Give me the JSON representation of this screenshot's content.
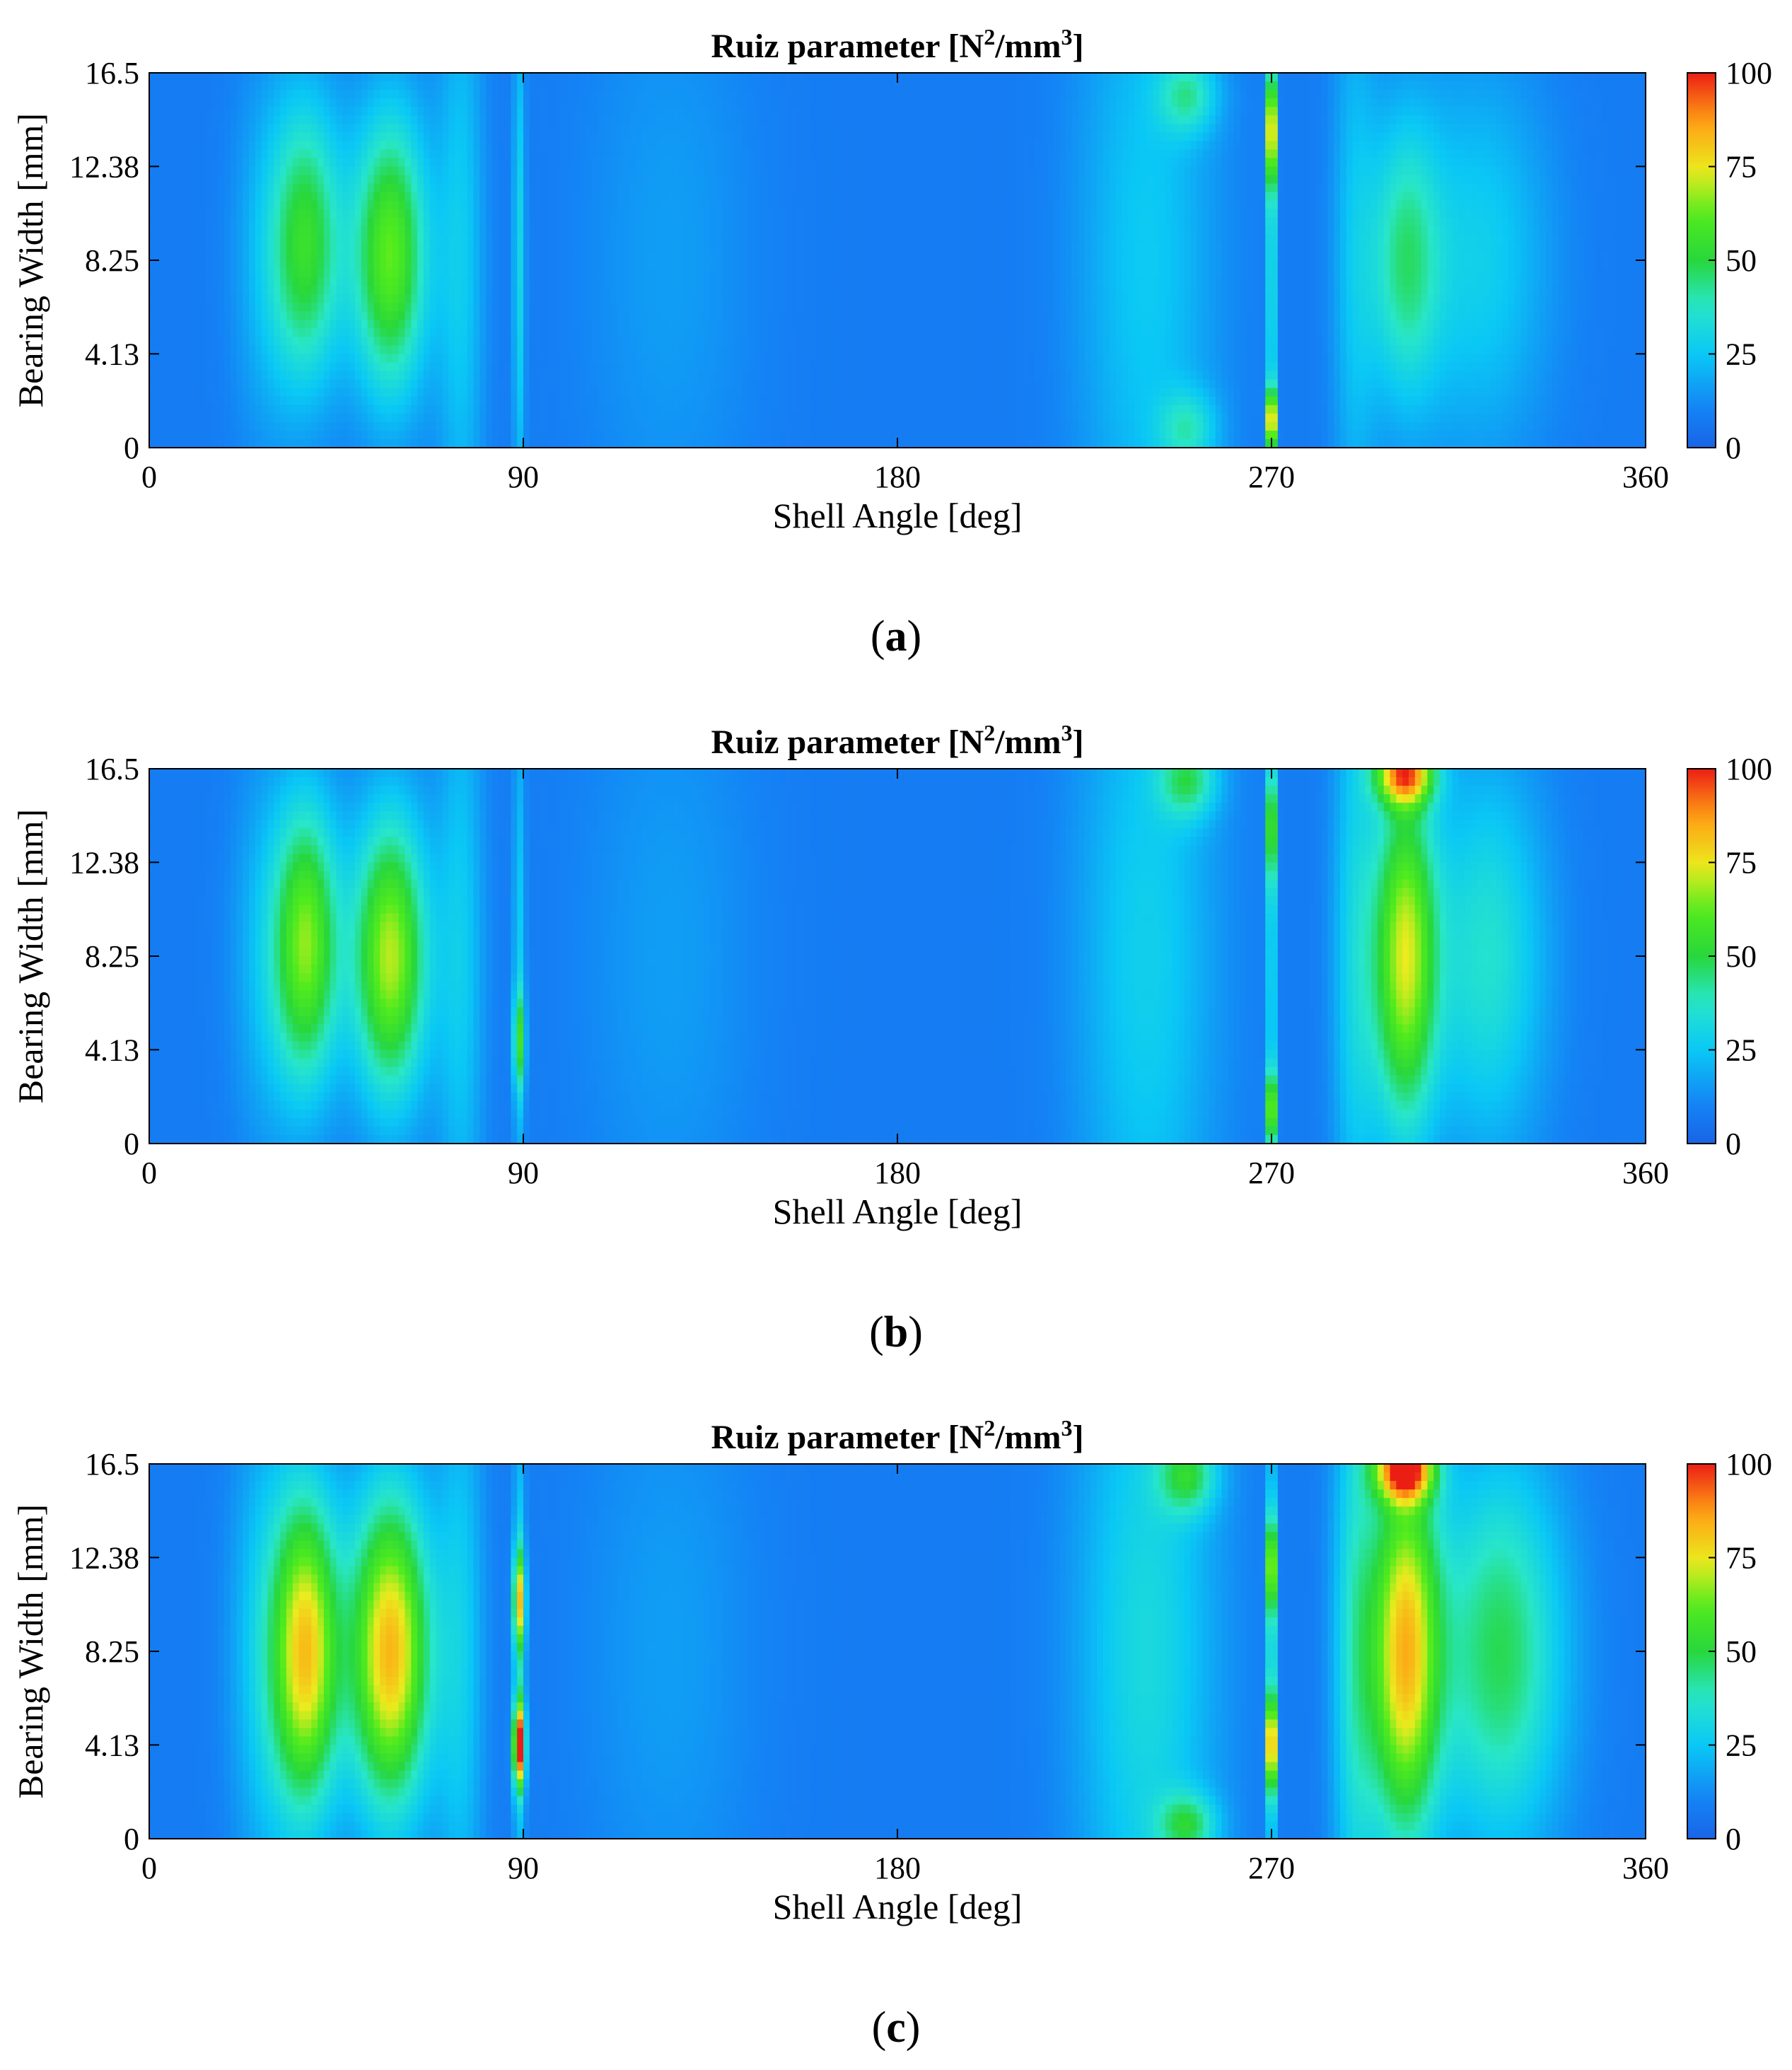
{
  "chart_data": [
    {
      "type": "heatmap",
      "panel_label": "(a)",
      "title_main": "Ruiz parameter [N",
      "title_sup1": "2",
      "title_mid": "/mm",
      "title_sup2": "3",
      "title_end": "]",
      "xlabel": "Shell Angle [deg]",
      "ylabel": "Bearing Width [mm]",
      "xlim": [
        0,
        360
      ],
      "ylim": [
        0,
        16.5
      ],
      "xticks": [
        0,
        90,
        180,
        270,
        360
      ],
      "xtick_labels": [
        "0",
        "90",
        "180",
        "270",
        "360"
      ],
      "yticks": [
        0,
        4.13,
        8.25,
        12.38,
        16.5
      ],
      "ytick_labels": [
        "0",
        "4.13",
        "8.25",
        "12.38",
        "16.5"
      ],
      "colorbar": {
        "min": 0,
        "max": 100,
        "ticks": [
          0,
          25,
          50,
          75,
          100
        ],
        "tick_labels": [
          "0",
          "25",
          "50",
          "75",
          "100"
        ]
      },
      "baseline_value": 8,
      "hotspots": [
        {
          "angle": 28,
          "width_mm": 8.25,
          "angle_spread": 6,
          "width_spread": 6,
          "value": 12
        },
        {
          "angle": 38,
          "width_mm": 9.0,
          "angle_spread": 6,
          "width_spread": 4.5,
          "value": 44
        },
        {
          "angle": 58,
          "width_mm": 8.5,
          "angle_spread": 6.5,
          "width_spread": 4.5,
          "value": 55
        },
        {
          "angle": 75,
          "width_mm": 8.25,
          "angle_spread": 4,
          "width_spread": 10,
          "value": 18
        },
        {
          "angle": 89,
          "width_mm": 8.25,
          "angle_spread": 1,
          "width_spread": 8,
          "value": 22
        },
        {
          "angle": 125,
          "width_mm": 8.25,
          "angle_spread": 15,
          "width_spread": 10,
          "value": 8
        },
        {
          "angle": 240,
          "width_mm": 8.25,
          "angle_spread": 12,
          "width_spread": 12,
          "value": 18
        },
        {
          "angle": 250,
          "width_mm": 15.5,
          "angle_spread": 5,
          "width_spread": 1.2,
          "value": 25
        },
        {
          "angle": 250,
          "width_mm": 0.8,
          "angle_spread": 5,
          "width_spread": 1.2,
          "value": 22
        },
        {
          "angle": 270,
          "width_mm": 14.0,
          "angle_spread": 0.7,
          "width_spread": 1.8,
          "value": 85
        },
        {
          "angle": 270,
          "width_mm": 1.2,
          "angle_spread": 0.7,
          "width_spread": 1.0,
          "value": 90
        },
        {
          "angle": 270,
          "width_mm": 8.25,
          "angle_spread": 0.7,
          "width_spread": 8,
          "value": 35
        },
        {
          "angle": 290,
          "width_mm": 8.25,
          "angle_spread": 4,
          "width_spread": 10,
          "value": 15
        },
        {
          "angle": 302,
          "width_mm": 8.25,
          "angle_spread": 6,
          "width_spread": 4.5,
          "value": 32
        },
        {
          "angle": 320,
          "width_mm": 8.25,
          "angle_spread": 12,
          "width_spread": 6,
          "value": 20
        }
      ]
    },
    {
      "type": "heatmap",
      "panel_label": "(b)",
      "title_main": "Ruiz parameter [N",
      "title_sup1": "2",
      "title_mid": "/mm",
      "title_sup2": "3",
      "title_end": "]",
      "xlabel": "Shell Angle [deg]",
      "ylabel": "Bearing Width [mm]",
      "xlim": [
        0,
        360
      ],
      "ylim": [
        0,
        16.5
      ],
      "xticks": [
        0,
        90,
        180,
        270,
        360
      ],
      "xtick_labels": [
        "0",
        "90",
        "180",
        "270",
        "360"
      ],
      "yticks": [
        0,
        4.13,
        8.25,
        12.38,
        16.5
      ],
      "ytick_labels": [
        "0",
        "4.13",
        "8.25",
        "12.38",
        "16.5"
      ],
      "colorbar": {
        "min": 0,
        "max": 100,
        "ticks": [
          0,
          25,
          50,
          75,
          100
        ],
        "tick_labels": [
          "0",
          "25",
          "50",
          "75",
          "100"
        ]
      },
      "baseline_value": 8,
      "hotspots": [
        {
          "angle": 28,
          "width_mm": 8.25,
          "angle_spread": 6,
          "width_spread": 6,
          "value": 14
        },
        {
          "angle": 38,
          "width_mm": 8.8,
          "angle_spread": 5.5,
          "width_spread": 4.5,
          "value": 55
        },
        {
          "angle": 58,
          "width_mm": 8.25,
          "angle_spread": 6.5,
          "width_spread": 4.5,
          "value": 62
        },
        {
          "angle": 75,
          "width_mm": 8.25,
          "angle_spread": 4,
          "width_spread": 10,
          "value": 18
        },
        {
          "angle": 89,
          "width_mm": 4.5,
          "angle_spread": 1,
          "width_spread": 1.5,
          "value": 35
        },
        {
          "angle": 89,
          "width_mm": 8.25,
          "angle_spread": 1,
          "width_spread": 8,
          "value": 18
        },
        {
          "angle": 125,
          "width_mm": 8.25,
          "angle_spread": 15,
          "width_spread": 10,
          "value": 8
        },
        {
          "angle": 240,
          "width_mm": 8.25,
          "angle_spread": 12,
          "width_spread": 12,
          "value": 20
        },
        {
          "angle": 250,
          "width_mm": 16.0,
          "angle_spread": 5,
          "width_spread": 1.2,
          "value": 30
        },
        {
          "angle": 270,
          "width_mm": 14.0,
          "angle_spread": 0.7,
          "width_spread": 1.8,
          "value": 55
        },
        {
          "angle": 270,
          "width_mm": 1.5,
          "angle_spread": 0.7,
          "width_spread": 1.2,
          "value": 70
        },
        {
          "angle": 270,
          "width_mm": 8.25,
          "angle_spread": 0.7,
          "width_spread": 8,
          "value": 30
        },
        {
          "angle": 290,
          "width_mm": 8.25,
          "angle_spread": 4,
          "width_spread": 10,
          "value": 20
        },
        {
          "angle": 302,
          "width_mm": 8.25,
          "angle_spread": 5.5,
          "width_spread": 5.5,
          "value": 62
        },
        {
          "angle": 302,
          "width_mm": 16.3,
          "angle_spread": 5,
          "width_spread": 1.0,
          "value": 70
        },
        {
          "angle": 322,
          "width_mm": 8.25,
          "angle_spread": 10,
          "width_spread": 6,
          "value": 28
        }
      ]
    },
    {
      "type": "heatmap",
      "panel_label": "(c)",
      "title_main": "Ruiz parameter [N",
      "title_sup1": "2",
      "title_mid": "/mm",
      "title_sup2": "3",
      "title_end": "]",
      "xlabel": "Shell Angle [deg]",
      "ylabel": "Bearing Width [mm]",
      "xlim": [
        0,
        360
      ],
      "ylim": [
        0,
        16.5
      ],
      "xticks": [
        0,
        90,
        180,
        270,
        360
      ],
      "xtick_labels": [
        "0",
        "90",
        "180",
        "270",
        "360"
      ],
      "yticks": [
        0,
        4.13,
        8.25,
        12.38,
        16.5
      ],
      "ytick_labels": [
        "0",
        "4.13",
        "8.25",
        "12.38",
        "16.5"
      ],
      "colorbar": {
        "min": 0,
        "max": 100,
        "ticks": [
          0,
          25,
          50,
          75,
          100
        ],
        "tick_labels": [
          "0",
          "25",
          "50",
          "75",
          "100"
        ]
      },
      "baseline_value": 8,
      "hotspots": [
        {
          "angle": 28,
          "width_mm": 8.25,
          "angle_spread": 6,
          "width_spread": 7,
          "value": 20
        },
        {
          "angle": 38,
          "width_mm": 8.25,
          "angle_spread": 5.5,
          "width_spread": 5,
          "value": 68
        },
        {
          "angle": 58,
          "width_mm": 8.25,
          "angle_spread": 7,
          "width_spread": 5,
          "value": 75
        },
        {
          "angle": 75,
          "width_mm": 8.25,
          "angle_spread": 4,
          "width_spread": 10,
          "value": 18
        },
        {
          "angle": 89,
          "width_mm": 4.13,
          "angle_spread": 1,
          "width_spread": 1.3,
          "value": 85
        },
        {
          "angle": 89,
          "width_mm": 10.5,
          "angle_spread": 1,
          "width_spread": 1.5,
          "value": 55
        },
        {
          "angle": 89,
          "width_mm": 8.25,
          "angle_spread": 1,
          "width_spread": 8,
          "value": 22
        },
        {
          "angle": 125,
          "width_mm": 8.25,
          "angle_spread": 15,
          "width_spread": 10,
          "value": 8
        },
        {
          "angle": 240,
          "width_mm": 8.25,
          "angle_spread": 12,
          "width_spread": 12,
          "value": 24
        },
        {
          "angle": 250,
          "width_mm": 16.0,
          "angle_spread": 5,
          "width_spread": 1.2,
          "value": 32
        },
        {
          "angle": 250,
          "width_mm": 0.6,
          "angle_spread": 5,
          "width_spread": 1.0,
          "value": 30
        },
        {
          "angle": 270,
          "width_mm": 4.13,
          "angle_spread": 0.7,
          "width_spread": 1.5,
          "value": 90
        },
        {
          "angle": 270,
          "width_mm": 12.0,
          "angle_spread": 0.7,
          "width_spread": 1.5,
          "value": 65
        },
        {
          "angle": 270,
          "width_mm": 8.25,
          "angle_spread": 0.7,
          "width_spread": 8,
          "value": 35
        },
        {
          "angle": 290,
          "width_mm": 8.25,
          "angle_spread": 4,
          "width_spread": 10,
          "value": 25
        },
        {
          "angle": 302,
          "width_mm": 8.25,
          "angle_spread": 6,
          "width_spread": 6,
          "value": 72
        },
        {
          "angle": 302,
          "width_mm": 16.3,
          "angle_spread": 5,
          "width_spread": 1.0,
          "value": 78
        },
        {
          "angle": 325,
          "width_mm": 8.25,
          "angle_spread": 11,
          "width_spread": 6,
          "value": 40
        }
      ]
    }
  ]
}
